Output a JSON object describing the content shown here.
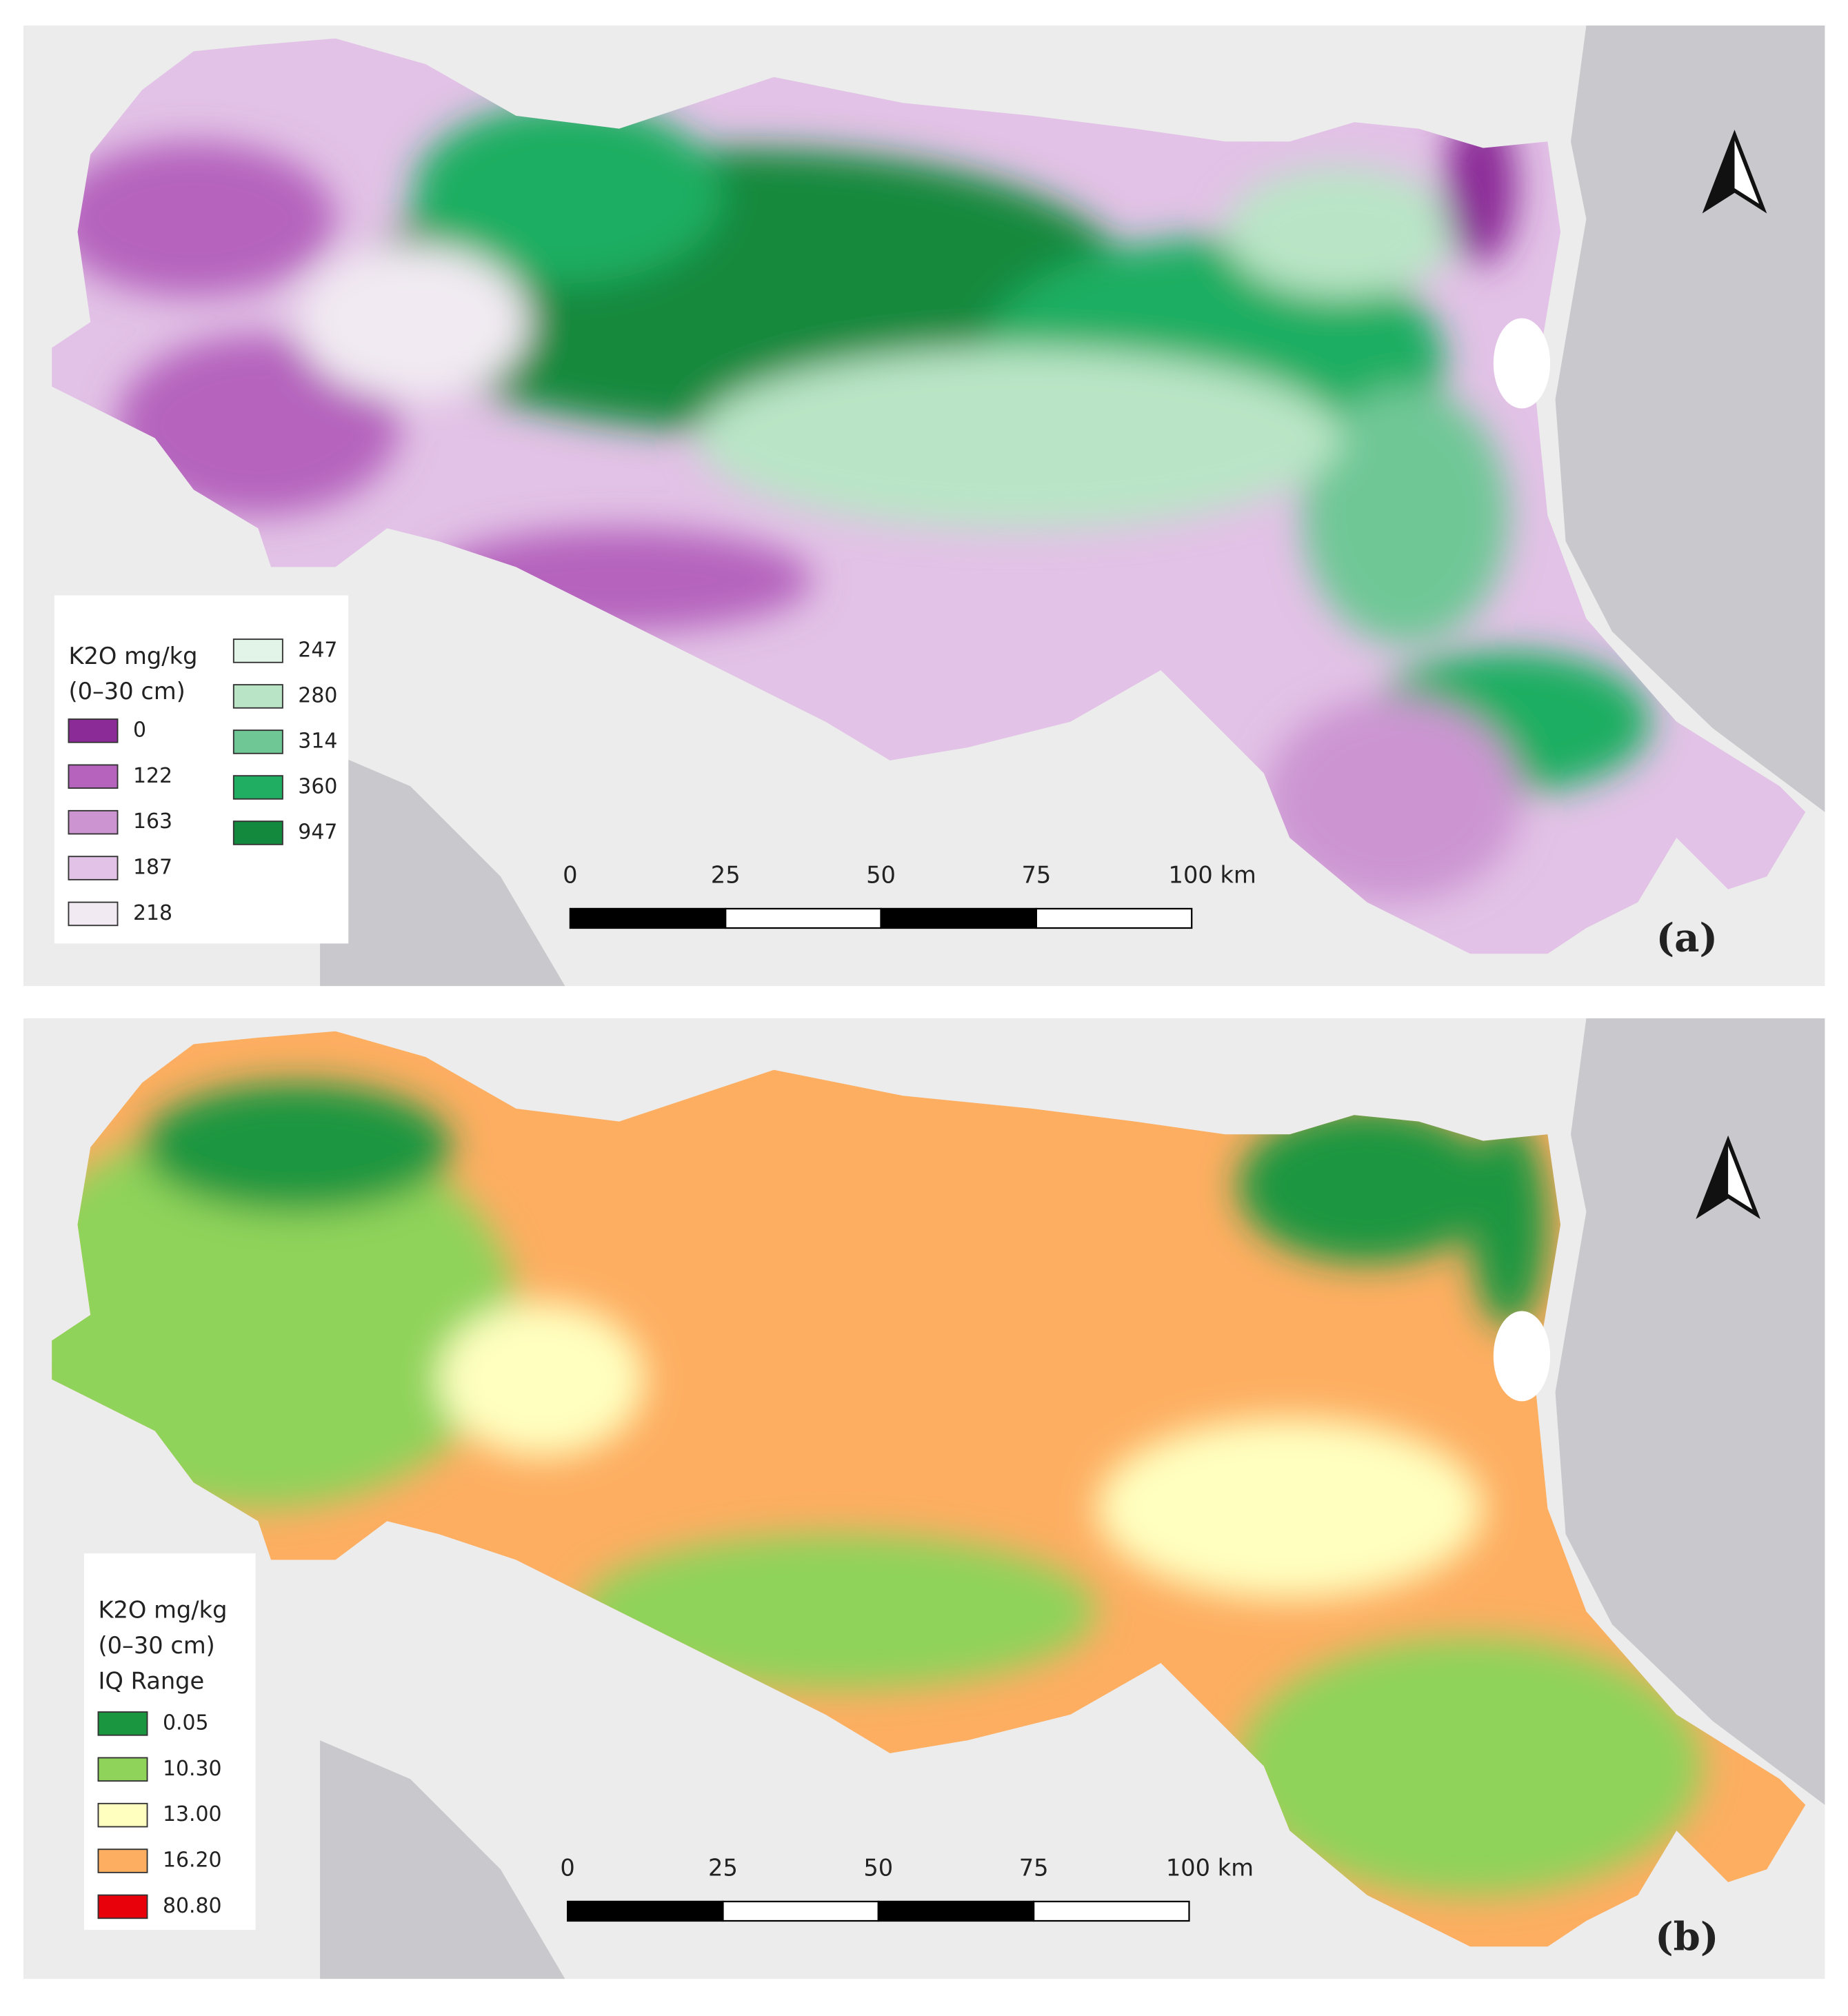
{
  "panels": [
    {
      "label": "(a)",
      "legend": {
        "title": [
          "K2O mg/kg",
          "(0–30 cm)"
        ],
        "items": [
          {
            "label": "0",
            "color": "#8b2b97"
          },
          {
            "label": "122",
            "color": "#b563bd"
          },
          {
            "label": "163",
            "color": "#cc95d2"
          },
          {
            "label": "187",
            "color": "#e2c2e6"
          },
          {
            "label": "218",
            "color": "#f1eaf2"
          },
          {
            "label": "247",
            "color": "#e2f3e7"
          },
          {
            "label": "280",
            "color": "#b9e5c6"
          },
          {
            "label": "314",
            "color": "#6fc796"
          },
          {
            "label": "360",
            "color": "#1fae62"
          },
          {
            "label": "947",
            "color": "#12893d"
          }
        ]
      },
      "scale_bar": [
        "0",
        "25",
        "50",
        "75",
        "100 km"
      ]
    },
    {
      "label": "(b)",
      "legend": {
        "title": [
          "K2O mg/kg",
          "(0–30 cm)",
          "IQ Range"
        ],
        "items": [
          {
            "label": "0.05",
            "color": "#1a9641"
          },
          {
            "label": "10.30",
            "color": "#8fd35a"
          },
          {
            "label": "13.00",
            "color": "#ffffbf"
          },
          {
            "label": "16.20",
            "color": "#fdae61"
          },
          {
            "label": "80.80",
            "color": "#e8000b"
          }
        ]
      },
      "scale_bar": [
        "0",
        "25",
        "50",
        "75",
        "100 km"
      ]
    }
  ]
}
